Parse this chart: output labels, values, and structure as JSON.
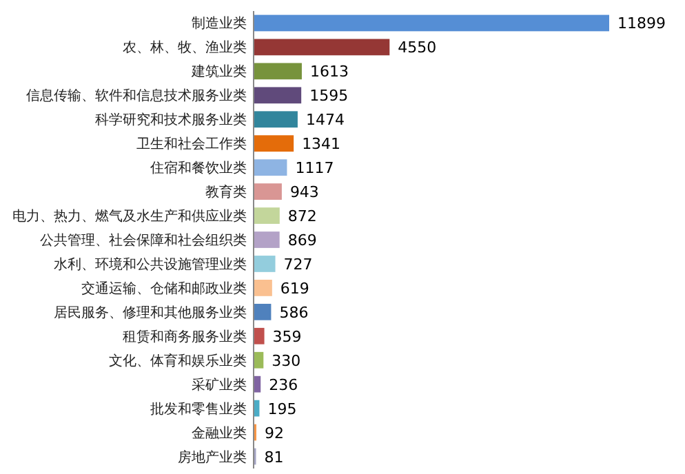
{
  "chart_data": {
    "type": "bar",
    "orientation": "horizontal",
    "data_labels": true,
    "categories": [
      "制造业类",
      "农、林、牧、渔业类",
      "建筑业类",
      "信息传输、软件和信息技术服务业类",
      "科学研究和技术服务业类",
      "卫生和社会工作类",
      "住宿和餐饮业类",
      "教育类",
      "电力、热力、燃气及水生产和供应业类",
      "公共管理、社会保障和社会组织类",
      "水利、环境和公共设施管理业类",
      "交通运输、仓储和邮政业类",
      "居民服务、修理和其他服务业类",
      "租赁和商务服务业类",
      "文化、体育和娱乐业类",
      "采矿业类",
      "批发和零售业类",
      "金融业类",
      "房地产业类"
    ],
    "values": [
      11899,
      4550,
      1613,
      1595,
      1474,
      1341,
      1117,
      943,
      872,
      869,
      727,
      619,
      586,
      359,
      330,
      236,
      195,
      92,
      81
    ],
    "colors": [
      "#558ed5",
      "#953735",
      "#77933c",
      "#604a7b",
      "#31859c",
      "#e46c0a",
      "#8eb4e3",
      "#d99694",
      "#c3d69b",
      "#b3a2c7",
      "#93cddd",
      "#fac090",
      "#4f81bd",
      "#c0504d",
      "#9bbb59",
      "#8064a2",
      "#4bacc6",
      "#f79646",
      "#a5a5c5"
    ]
  }
}
